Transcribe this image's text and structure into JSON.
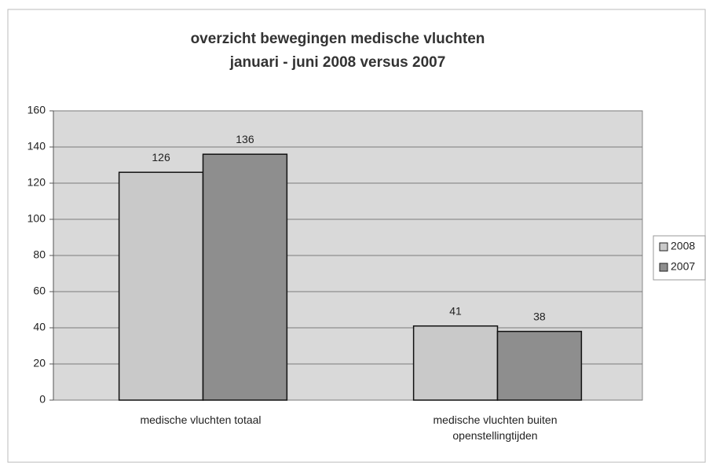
{
  "chart_data": {
    "type": "bar",
    "title": "overzicht bewegingen medische vluchten",
    "subtitle": "januari - juni  2008 versus 2007",
    "categories": [
      "medische vluchten totaal",
      "medische vluchten buiten openstellingtijden"
    ],
    "series": [
      {
        "name": "2008",
        "color": "#c9c9c9",
        "values": [
          126,
          41
        ]
      },
      {
        "name": "2007",
        "color": "#8e8e8e",
        "values": [
          136,
          38
        ]
      }
    ],
    "ylim": [
      0,
      160
    ],
    "yticks": [
      0,
      20,
      40,
      60,
      80,
      100,
      120,
      140,
      160
    ],
    "grid": true,
    "legend": "right"
  }
}
